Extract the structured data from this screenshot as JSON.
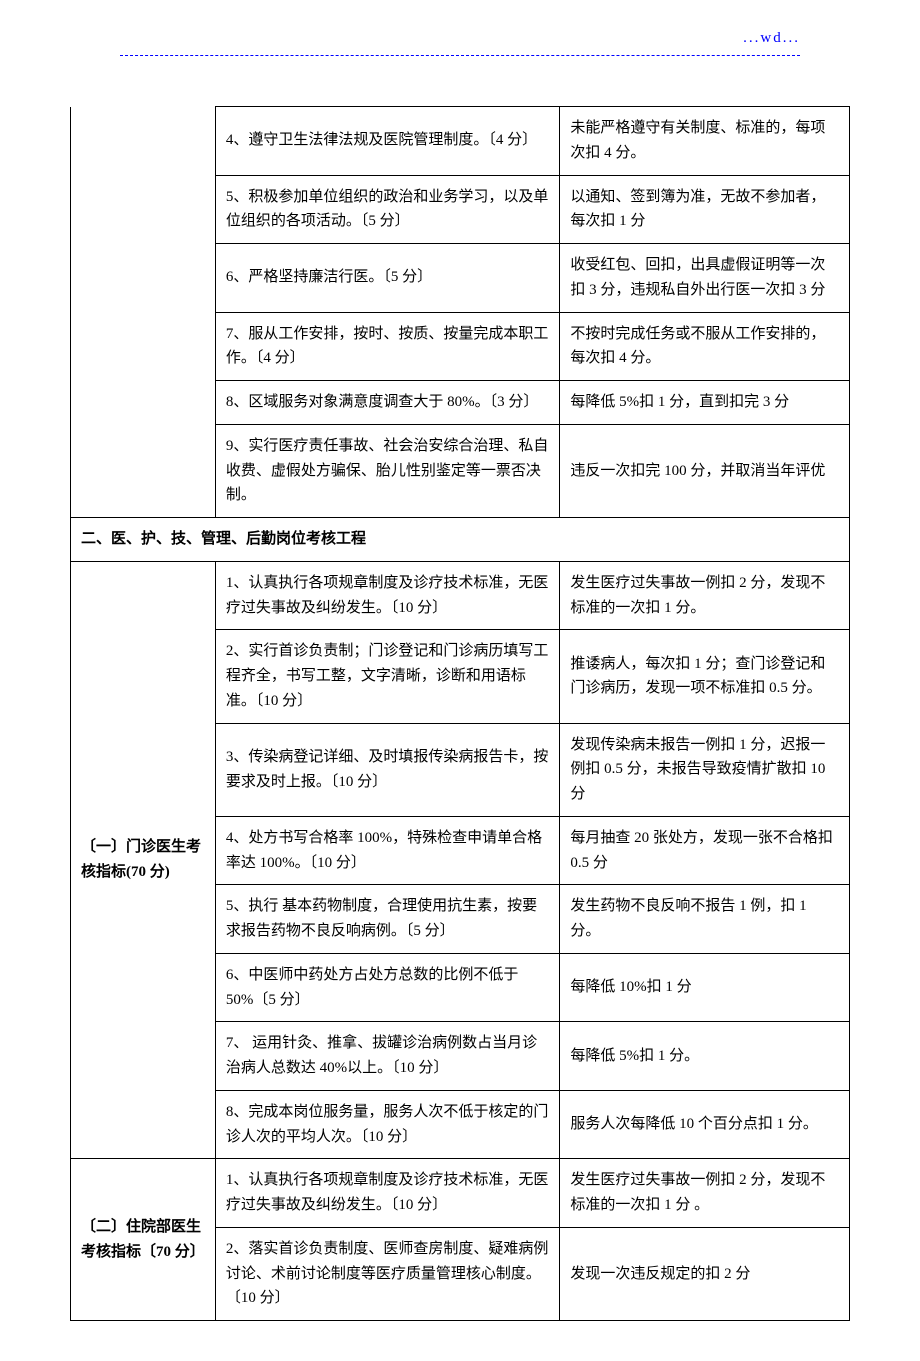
{
  "header": {
    "text": "...wd..."
  },
  "section_a": {
    "rows": [
      {
        "mid": "4、遵守卫生法律法规及医院管理制度。〔4 分〕",
        "right": "未能严格遵守有关制度、标准的，每项次扣 4 分。"
      },
      {
        "mid": "5、积极参加单位组织的政治和业务学习，以及单位组织的各项活动。〔5 分〕",
        "right": "以通知、签到簿为准，无故不参加者，每次扣 1 分"
      },
      {
        "mid": "6、严格坚持廉洁行医。〔5 分〕",
        "right": "收受红包、回扣，出具虚假证明等一次扣 3 分，违规私自外出行医一次扣 3 分"
      },
      {
        "mid": "7、服从工作安排，按时、按质、按量完成本职工作。〔4 分〕",
        "right": "不按时完成任务或不服从工作安排的，每次扣 4 分。"
      },
      {
        "mid": "8、区域服务对象满意度调查大于 80%。〔3 分〕",
        "right": "每降低 5%扣 1 分，直到扣完 3 分"
      },
      {
        "mid": "9、实行医疗责任事故、社会治安综合治理、私自收费、虚假处方骗保、胎儿性别鉴定等一票否决制。",
        "right": "违反一次扣完 100 分，并取消当年评优"
      }
    ]
  },
  "section_header": "二、医、护、技、管理、后勤岗位考核工程",
  "section_b1": {
    "label": "〔一〕门诊医生考核指标(70 分)",
    "rows": [
      {
        "mid": "1、认真执行各项规章制度及诊疗技术标准，无医疗过失事故及纠纷发生。〔10 分〕",
        "right": "发生医疗过失事故一例扣 2 分，发现不标准的一次扣 1 分。"
      },
      {
        "mid": "2、实行首诊负责制；门诊登记和门诊病历填写工程齐全，书写工整，文字清晰，诊断和用语标准。〔10 分〕",
        "right": "推诿病人，每次扣 1 分；查门诊登记和门诊病历，发现一项不标准扣 0.5 分。"
      },
      {
        "mid": "3、传染病登记详细、及时填报传染病报告卡，按要求及时上报。〔10 分〕",
        "right": "发现传染病未报告一例扣 1 分，迟报一例扣 0.5 分，未报告导致疫情扩散扣 10 分"
      },
      {
        "mid": "4、处方书写合格率 100%，特殊检查申请单合格率达 100%。〔10 分〕",
        "right": "每月抽查 20 张处方，发现一张不合格扣 0.5 分"
      },
      {
        "mid": "5、执行   基本药物制度，合理使用抗生素，按要求报告药物不良反响病例。〔5 分〕",
        "right": "发生药物不良反响不报告 1 例，扣 1 分。"
      },
      {
        "mid": "6、中医师中药处方占处方总数的比例不低于 50%〔5 分〕",
        "right": "每降低 10%扣 1 分"
      },
      {
        "mid": "7、 运用针灸、推拿、拔罐诊治病例数占当月诊治病人总数达 40%以上。〔10 分〕",
        "right": "每降低 5%扣 1 分。"
      },
      {
        "mid": "8、完成本岗位服务量，服务人次不低于核定的门诊人次的平均人次。〔10 分〕",
        "right": "服务人次每降低 10 个百分点扣 1 分。"
      }
    ]
  },
  "section_b2": {
    "label": "〔二〕住院部医生考核指标〔70 分〕",
    "rows": [
      {
        "mid": "1、认真执行各项规章制度及诊疗技术标准，无医疗过失事故及纠纷发生。〔10 分〕",
        "right": "发生医疗过失事故一例扣 2 分，发现不标准的一次扣 1 分 。"
      },
      {
        "mid": "2、落实首诊负责制度、医师查房制度、疑难病例讨论、术前讨论制度等医疗质量管理核心制度。〔10 分〕",
        "right": "发现一次违反规定的扣 2 分"
      }
    ]
  }
}
